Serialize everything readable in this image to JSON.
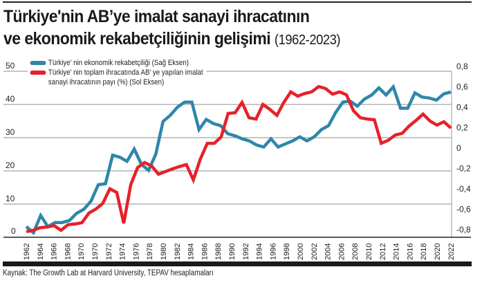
{
  "title": {
    "line1": "Türkiye'nin AB’ye imalat sanayi ihracatının",
    "line2": "ve ekonomik rekabetçiliğinin gelişimi",
    "years": "(1962-2023)"
  },
  "legend": {
    "blue_label": "Türkiye’ nin ekonomik rekabetçiliği (Sağ Eksen)",
    "red_label_line1": "Türkiye’ nin toplam ihracatında AB’  ye yapılan imalat",
    "red_label_line2": "sanayi ihracatının payı (%) (Sol Eksen)"
  },
  "source": "Kaynak: The Growth Lab at Harvard University, TEPAV hesaplamaları",
  "colors": {
    "blue": "#2E87A8",
    "red": "#E62129",
    "grid": "#8c8c8c",
    "axis": "#222222"
  },
  "chart_data": {
    "type": "line",
    "title": "Türkiye'nin AB’ye imalat sanayi ihracatının ve ekonomik rekabetçiliğinin gelişimi (1962-2023)",
    "xlabel": "",
    "x_tick_labels": [
      "1962",
      "1964",
      "1966",
      "1968",
      "1970",
      "1970",
      "1972",
      "1974",
      "1976",
      "1978",
      "1980",
      "1982",
      "1984",
      "1986",
      "1988",
      "1990",
      "1992",
      "1994",
      "1996",
      "1998",
      "2000",
      "2002",
      "2004",
      "2006",
      "2008",
      "2010",
      "2012",
      "2014",
      "2016",
      "2018",
      "2020",
      "2022"
    ],
    "left_axis": {
      "label": "Sol Eksen (%)",
      "ticks": [
        "0",
        "10",
        "20",
        "30",
        "40",
        "50"
      ],
      "ylim": [
        0,
        50
      ]
    },
    "right_axis": {
      "label": "Sağ Eksen",
      "ticks": [
        "-0,8",
        "-0,6",
        "-0,4",
        "-0,2",
        "0",
        "0,2",
        "0,4",
        "0,6",
        "0,8"
      ],
      "ylim": [
        -0.8,
        0.8
      ]
    },
    "grid": true,
    "legend_position": "top-left",
    "series": [
      {
        "name": "Türkiye’ nin ekonomik rekabetçiliği (Sağ Eksen)",
        "axis": "right",
        "color": "#2E87A8",
        "values": [
          -0.77,
          -0.83,
          -0.66,
          -0.77,
          -0.73,
          -0.73,
          -0.71,
          -0.64,
          -0.6,
          -0.52,
          -0.36,
          -0.35,
          -0.07,
          -0.09,
          -0.13,
          -0.01,
          -0.16,
          -0.22,
          -0.06,
          0.26,
          0.32,
          0.4,
          0.45,
          0.45,
          0.18,
          0.28,
          0.24,
          0.22,
          0.14,
          0.12,
          0.09,
          0.07,
          0.03,
          0.01,
          0.09,
          0.01,
          0.04,
          0.07,
          0.11,
          0.07,
          0.11,
          0.18,
          0.22,
          0.35,
          0.45,
          0.46,
          0.41,
          0.48,
          0.52,
          0.59,
          0.52,
          0.6,
          0.39,
          0.39,
          0.54,
          0.5,
          0.49,
          0.47,
          0.53,
          0.55
        ]
      },
      {
        "name": "Türkiye’ nin toplam ihracatında AB’ ye yapılan imalat sanayi ihracatının payı (%) (Sol Eksen)",
        "axis": "left",
        "color": "#E62129",
        "values": [
          1.7,
          2.1,
          2.9,
          3.1,
          3.5,
          2.1,
          3.8,
          4.0,
          4.4,
          7.3,
          8.5,
          10.2,
          14.6,
          13.5,
          4.2,
          15.8,
          21.0,
          22.5,
          21.5,
          19.0,
          19.8,
          20.6,
          21.3,
          21.9,
          17.3,
          23.5,
          28.3,
          28.3,
          30.2,
          37.3,
          37.5,
          40.6,
          36.0,
          35.6,
          40.0,
          38.5,
          36.7,
          40.6,
          43.8,
          42.5,
          43.3,
          43.8,
          45.4,
          44.8,
          43.1,
          43.8,
          42.9,
          38.1,
          36.0,
          35.6,
          35.4,
          28.3,
          29.2,
          30.8,
          31.3,
          33.5,
          35.2,
          37.1,
          35.0,
          33.8,
          34.8,
          32.9
        ]
      }
    ]
  }
}
